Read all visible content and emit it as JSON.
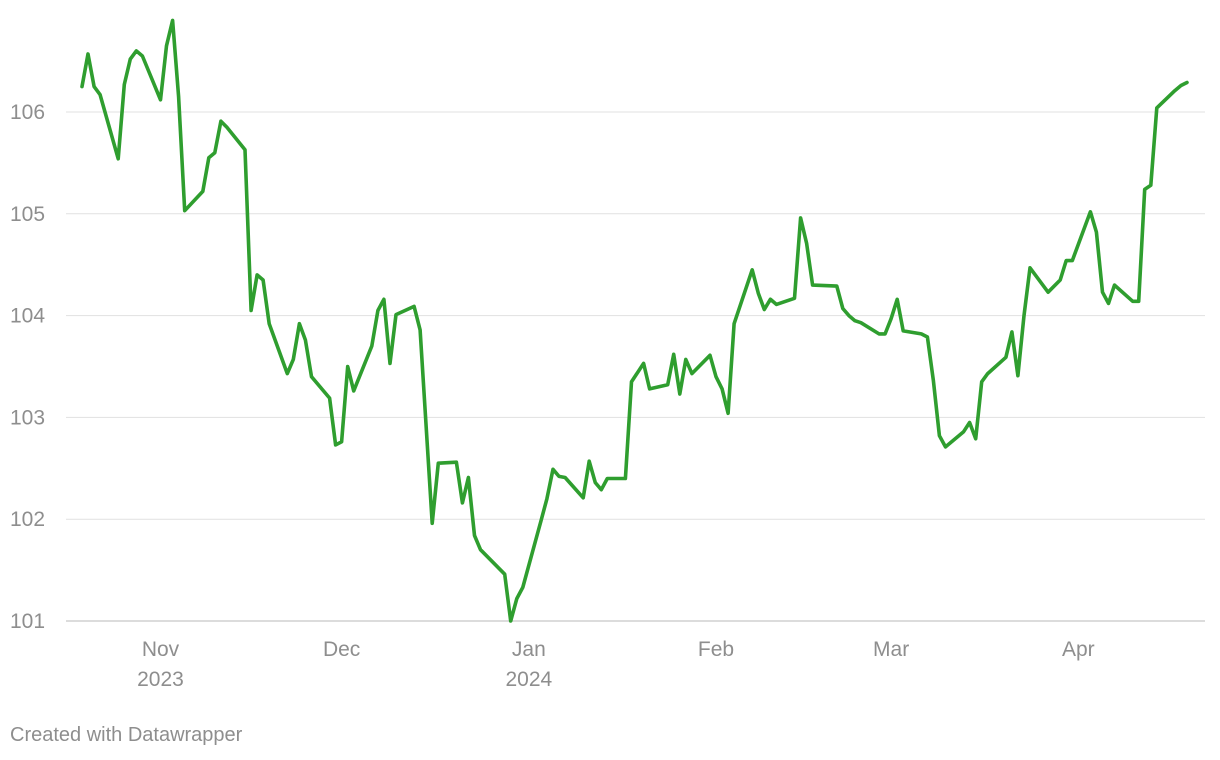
{
  "chart_data": {
    "type": "line",
    "title": "",
    "xlabel": "",
    "ylabel": "",
    "ylim": [
      101,
      107
    ],
    "yticks": [
      101,
      102,
      103,
      104,
      105,
      106
    ],
    "xlim": [
      "2023-10-19",
      "2024-04-19"
    ],
    "xticks": [
      {
        "date": "2023-11-01",
        "label": "Nov",
        "sublabel": "2023"
      },
      {
        "date": "2023-12-01",
        "label": "Dec",
        "sublabel": ""
      },
      {
        "date": "2024-01-01",
        "label": "Jan",
        "sublabel": "2024"
      },
      {
        "date": "2024-02-01",
        "label": "Feb",
        "sublabel": ""
      },
      {
        "date": "2024-03-01",
        "label": "Mar",
        "sublabel": ""
      },
      {
        "date": "2024-04-01",
        "label": "Apr",
        "sublabel": ""
      }
    ],
    "grid": true,
    "legend": "none",
    "series": [
      {
        "color": "#2f9e2f",
        "points": [
          [
            "2023-10-19",
            106.25
          ],
          [
            "2023-10-20",
            106.57
          ],
          [
            "2023-10-21",
            106.25
          ],
          [
            "2023-10-22",
            106.17
          ],
          [
            "2023-10-25",
            105.54
          ],
          [
            "2023-10-26",
            106.27
          ],
          [
            "2023-10-27",
            106.52
          ],
          [
            "2023-10-28",
            106.6
          ],
          [
            "2023-10-29",
            106.55
          ],
          [
            "2023-11-01",
            106.12
          ],
          [
            "2023-11-02",
            106.65
          ],
          [
            "2023-11-03",
            106.9
          ],
          [
            "2023-11-04",
            106.15
          ],
          [
            "2023-11-05",
            105.03
          ],
          [
            "2023-11-08",
            105.22
          ],
          [
            "2023-11-09",
            105.55
          ],
          [
            "2023-11-10",
            105.6
          ],
          [
            "2023-11-11",
            105.91
          ],
          [
            "2023-11-12",
            105.85
          ],
          [
            "2023-11-15",
            105.63
          ],
          [
            "2023-11-16",
            104.05
          ],
          [
            "2023-11-17",
            104.4
          ],
          [
            "2023-11-18",
            104.35
          ],
          [
            "2023-11-19",
            103.92
          ],
          [
            "2023-11-22",
            103.43
          ],
          [
            "2023-11-23",
            103.57
          ],
          [
            "2023-11-24",
            103.92
          ],
          [
            "2023-11-25",
            103.76
          ],
          [
            "2023-11-26",
            103.4
          ],
          [
            "2023-11-29",
            103.19
          ],
          [
            "2023-11-30",
            102.73
          ],
          [
            "2023-12-01",
            102.76
          ],
          [
            "2023-12-02",
            103.5
          ],
          [
            "2023-12-03",
            103.26
          ],
          [
            "2023-12-06",
            103.7
          ],
          [
            "2023-12-07",
            104.05
          ],
          [
            "2023-12-08",
            104.16
          ],
          [
            "2023-12-09",
            103.53
          ],
          [
            "2023-12-10",
            104.01
          ],
          [
            "2023-12-13",
            104.09
          ],
          [
            "2023-12-14",
            103.86
          ],
          [
            "2023-12-16",
            101.96
          ],
          [
            "2023-12-17",
            102.55
          ],
          [
            "2023-12-20",
            102.56
          ],
          [
            "2023-12-21",
            102.16
          ],
          [
            "2023-12-22",
            102.41
          ],
          [
            "2023-12-23",
            101.84
          ],
          [
            "2023-12-24",
            101.7
          ],
          [
            "2023-12-28",
            101.46
          ],
          [
            "2023-12-29",
            101.0
          ],
          [
            "2023-12-30",
            101.22
          ],
          [
            "2023-12-31",
            101.33
          ],
          [
            "2024-01-03",
            101.98
          ],
          [
            "2024-01-04",
            102.2
          ],
          [
            "2024-01-05",
            102.49
          ],
          [
            "2024-01-06",
            102.42
          ],
          [
            "2024-01-07",
            102.41
          ],
          [
            "2024-01-10",
            102.21
          ],
          [
            "2024-01-11",
            102.57
          ],
          [
            "2024-01-12",
            102.36
          ],
          [
            "2024-01-13",
            102.29
          ],
          [
            "2024-01-14",
            102.4
          ],
          [
            "2024-01-17",
            102.4
          ],
          [
            "2024-01-18",
            103.35
          ],
          [
            "2024-01-20",
            103.53
          ],
          [
            "2024-01-21",
            103.28
          ],
          [
            "2024-01-24",
            103.32
          ],
          [
            "2024-01-25",
            103.62
          ],
          [
            "2024-01-26",
            103.23
          ],
          [
            "2024-01-27",
            103.57
          ],
          [
            "2024-01-28",
            103.43
          ],
          [
            "2024-01-31",
            103.61
          ],
          [
            "2024-02-01",
            103.4
          ],
          [
            "2024-02-02",
            103.28
          ],
          [
            "2024-02-03",
            103.04
          ],
          [
            "2024-02-04",
            103.92
          ],
          [
            "2024-02-07",
            104.45
          ],
          [
            "2024-02-08",
            104.22
          ],
          [
            "2024-02-09",
            104.06
          ],
          [
            "2024-02-10",
            104.16
          ],
          [
            "2024-02-11",
            104.11
          ],
          [
            "2024-02-14",
            104.17
          ],
          [
            "2024-02-15",
            104.96
          ],
          [
            "2024-02-16",
            104.71
          ],
          [
            "2024-02-17",
            104.3
          ],
          [
            "2024-02-21",
            104.29
          ],
          [
            "2024-02-22",
            104.07
          ],
          [
            "2024-02-23",
            104.0
          ],
          [
            "2024-02-24",
            103.95
          ],
          [
            "2024-02-25",
            103.93
          ],
          [
            "2024-02-28",
            103.82
          ],
          [
            "2024-02-29",
            103.82
          ],
          [
            "2024-03-01",
            103.97
          ],
          [
            "2024-03-02",
            104.16
          ],
          [
            "2024-03-03",
            103.85
          ],
          [
            "2024-03-06",
            103.82
          ],
          [
            "2024-03-07",
            103.79
          ],
          [
            "2024-03-08",
            103.36
          ],
          [
            "2024-03-09",
            102.82
          ],
          [
            "2024-03-10",
            102.71
          ],
          [
            "2024-03-13",
            102.86
          ],
          [
            "2024-03-14",
            102.95
          ],
          [
            "2024-03-15",
            102.79
          ],
          [
            "2024-03-16",
            103.35
          ],
          [
            "2024-03-17",
            103.43
          ],
          [
            "2024-03-20",
            103.59
          ],
          [
            "2024-03-21",
            103.84
          ],
          [
            "2024-03-22",
            103.41
          ],
          [
            "2024-03-23",
            104.0
          ],
          [
            "2024-03-24",
            104.47
          ],
          [
            "2024-03-27",
            104.23
          ],
          [
            "2024-03-29",
            104.35
          ],
          [
            "2024-03-30",
            104.54
          ],
          [
            "2024-03-31",
            104.54
          ],
          [
            "2024-04-03",
            105.02
          ],
          [
            "2024-04-04",
            104.82
          ],
          [
            "2024-04-05",
            104.23
          ],
          [
            "2024-04-06",
            104.12
          ],
          [
            "2024-04-07",
            104.3
          ],
          [
            "2024-04-10",
            104.14
          ],
          [
            "2024-04-11",
            104.14
          ],
          [
            "2024-04-12",
            105.24
          ],
          [
            "2024-04-13",
            105.28
          ],
          [
            "2024-04-14",
            106.04
          ],
          [
            "2024-04-17",
            106.21
          ],
          [
            "2024-04-18",
            106.26
          ],
          [
            "2024-04-19",
            106.29
          ]
        ]
      }
    ]
  },
  "footer": {
    "credit": "Created with Datawrapper"
  }
}
